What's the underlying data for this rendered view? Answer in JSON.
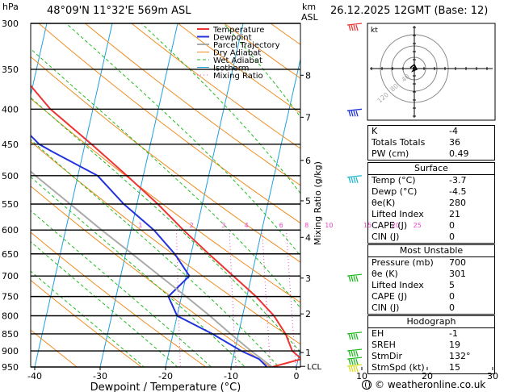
{
  "header": {
    "station": "48°09'N 11°32'E 569m ASL",
    "datetime": "26.12.2025 12GMT (Base: 12)",
    "hpa_unit": "hPa",
    "km_unit": "km",
    "asl_unit": "ASL"
  },
  "chart_data": {
    "type": "line",
    "xlabel": "Dewpoint / Temperature (°C)",
    "ylabel": "hPa",
    "right_ylabel": "Mixing Ratio (g/kg)",
    "xlim": [
      -40,
      38
    ],
    "ylim": [
      950,
      300
    ],
    "x_ticks": [
      -40,
      -30,
      -20,
      -10,
      0,
      10,
      20,
      30
    ],
    "pressure_ticks": [
      300,
      350,
      400,
      450,
      500,
      550,
      600,
      650,
      700,
      750,
      800,
      850,
      900,
      950
    ],
    "km_ticks": [
      {
        "label": "8",
        "p": 357
      },
      {
        "label": "7",
        "p": 411
      },
      {
        "label": "6",
        "p": 475
      },
      {
        "label": "5",
        "p": 544
      },
      {
        "label": "4",
        "p": 615
      },
      {
        "label": "3",
        "p": 705
      },
      {
        "label": "2",
        "p": 795
      },
      {
        "label": "1",
        "p": 905
      }
    ],
    "lcl_label": "LCL",
    "lcl_p": 948,
    "mixing_ratio_labels": [
      {
        "label": "1",
        "t": -28.5
      },
      {
        "label": "2",
        "t": -20.7
      },
      {
        "label": "3",
        "t": -15.8
      },
      {
        "label": "4",
        "t": -12.3
      },
      {
        "label": "6",
        "t": -7.0
      },
      {
        "label": "8",
        "t": -3.1
      },
      {
        "label": "10",
        "t": 0.0
      },
      {
        "label": "15",
        "t": 5.9
      },
      {
        "label": "20",
        "t": 10.2
      },
      {
        "label": "25",
        "t": 13.5
      }
    ],
    "legend": [
      "Temperature",
      "Dewpoint",
      "Parcel Trajectory",
      "Dry Adiabat",
      "Wet Adiabat",
      "Isotherm",
      "Mixing Ratio"
    ],
    "colors": {
      "temperature": "#ee3333",
      "dewpoint": "#2233dd",
      "parcel": "#aaaaaa",
      "dry_adiabat": "#f08c20",
      "wet_adiabat": "#22bb22",
      "isotherm": "#1ea0e0",
      "mixing_ratio": "#ee44cc"
    },
    "series": [
      {
        "name": "Temperature",
        "points": [
          [
            950,
            -3.7
          ],
          [
            925,
            0.5
          ],
          [
            900,
            -1.2
          ],
          [
            850,
            -2.8
          ],
          [
            800,
            -5.2
          ],
          [
            750,
            -8.6
          ],
          [
            700,
            -12.8
          ],
          [
            650,
            -17.3
          ],
          [
            600,
            -22.0
          ],
          [
            550,
            -26.8
          ],
          [
            500,
            -32.5
          ],
          [
            450,
            -39.0
          ],
          [
            400,
            -46.5
          ],
          [
            350,
            -53.0
          ],
          [
            300,
            -56.5
          ]
        ]
      },
      {
        "name": "Dewpoint",
        "points": [
          [
            950,
            -4.5
          ],
          [
            925,
            -6.0
          ],
          [
            900,
            -9.0
          ],
          [
            850,
            -14.0
          ],
          [
            800,
            -20.0
          ],
          [
            750,
            -22.0
          ],
          [
            700,
            -19.5
          ],
          [
            650,
            -22.5
          ],
          [
            600,
            -26.5
          ],
          [
            550,
            -32.0
          ],
          [
            500,
            -37.0
          ],
          [
            460,
            -45.0
          ],
          [
            450,
            -47.0
          ],
          [
            400,
            -53.5
          ],
          [
            350,
            -59.0
          ],
          [
            300,
            -52.5
          ]
        ]
      },
      {
        "name": "Parcel Trajectory",
        "points": [
          [
            950,
            -3.7
          ],
          [
            900,
            -7.5
          ],
          [
            850,
            -11.2
          ],
          [
            800,
            -15.0
          ],
          [
            750,
            -19.3
          ],
          [
            700,
            -24.0
          ],
          [
            650,
            -29.0
          ],
          [
            600,
            -34.5
          ],
          [
            550,
            -40.2
          ],
          [
            500,
            -46.5
          ],
          [
            450,
            -53.0
          ],
          [
            400,
            -60.0
          ],
          [
            350,
            -67.0
          ],
          [
            300,
            -73.0
          ]
        ]
      }
    ]
  },
  "hodograph": {
    "unit_label": "kt",
    "ring_labels": [
      "40",
      "80",
      "120"
    ]
  },
  "indices": [
    {
      "key": "K",
      "value": "-4"
    },
    {
      "key": "Totals Totals",
      "value": "36"
    },
    {
      "key": "PW (cm)",
      "value": "0.49"
    }
  ],
  "surface": {
    "title": "Surface",
    "rows": [
      {
        "key": "Temp (°C)",
        "value": "-3.7"
      },
      {
        "key": "Dewp (°C)",
        "value": "-4.5"
      },
      {
        "key": "θe(K)",
        "value": "280"
      },
      {
        "key": "Lifted Index",
        "value": "21"
      },
      {
        "key": "CAPE (J)",
        "value": "0"
      },
      {
        "key": "CIN (J)",
        "value": "0"
      }
    ]
  },
  "most_unstable": {
    "title": "Most Unstable",
    "rows": [
      {
        "key": "Pressure (mb)",
        "value": "700"
      },
      {
        "key": "θe (K)",
        "value": "301"
      },
      {
        "key": "Lifted Index",
        "value": "5"
      },
      {
        "key": "CAPE (J)",
        "value": "0"
      },
      {
        "key": "CIN (J)",
        "value": "0"
      }
    ]
  },
  "hodograph_table": {
    "title": "Hodograph",
    "rows": [
      {
        "key": "EH",
        "value": "-1"
      },
      {
        "key": "SREH",
        "value": "19"
      },
      {
        "key": "StmDir",
        "value": "132°"
      },
      {
        "key": "StmSpd (kt)",
        "value": "15"
      }
    ]
  },
  "footer": {
    "text": "© weatheronline.co.uk"
  }
}
